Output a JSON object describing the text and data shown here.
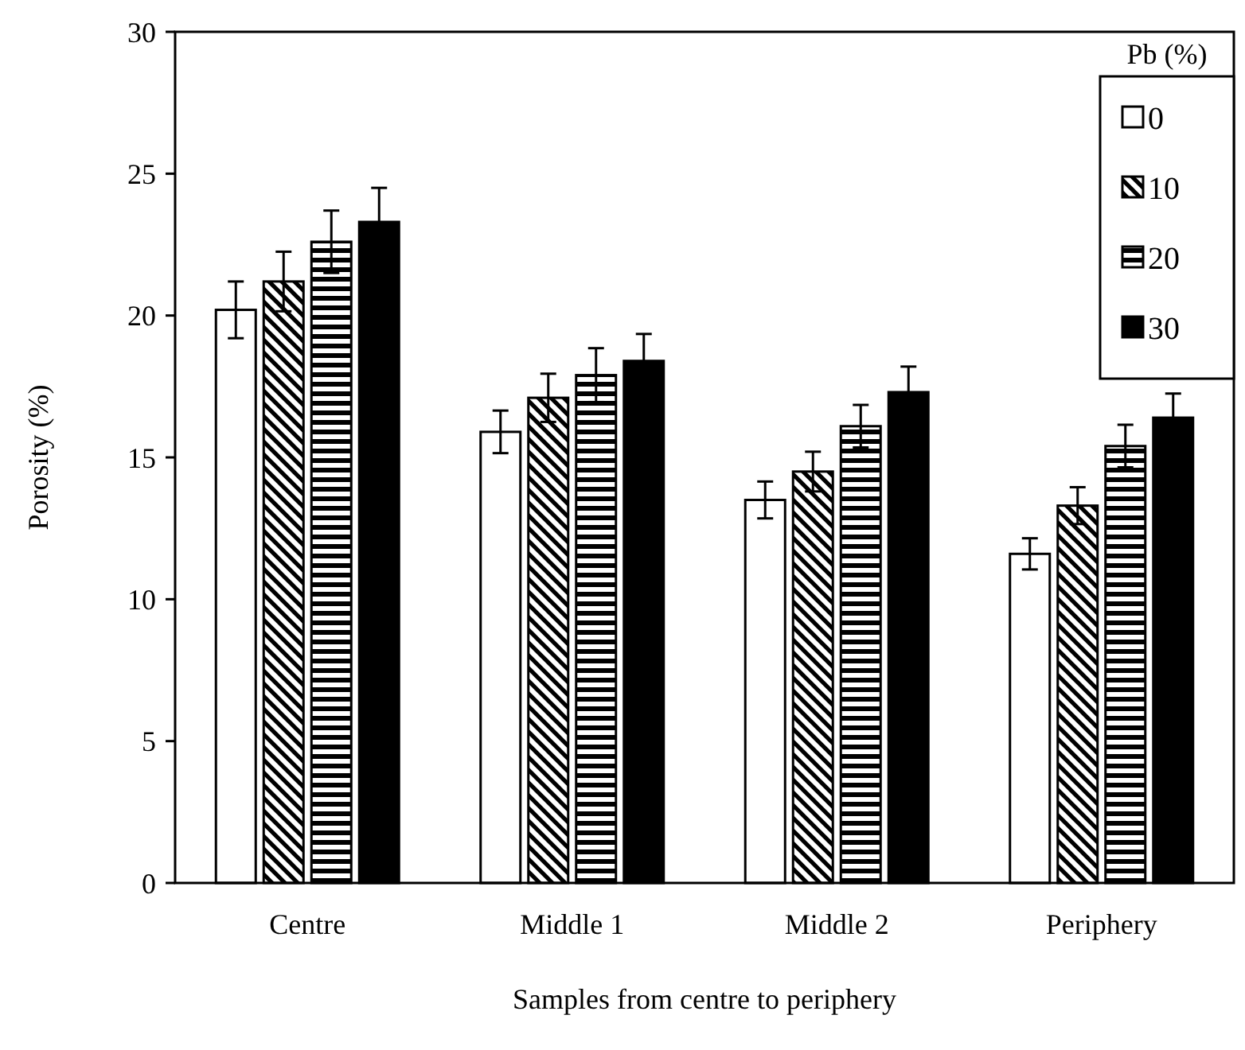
{
  "chart_data": {
    "type": "bar",
    "xlabel": "Samples from centre to periphery",
    "ylabel": "Porosity (%)",
    "legend_title": "Pb (%)",
    "legend": "top right",
    "grid": false,
    "categories": [
      "Centre",
      "Middle 1",
      "Middle 2",
      "Periphery"
    ],
    "ylim": [
      0,
      30
    ],
    "yticks": [
      0,
      5,
      10,
      15,
      20,
      25,
      30
    ],
    "series": [
      {
        "name": "0",
        "color": "#ffffff",
        "values": [
          20.2,
          15.9,
          13.5,
          11.6
        ],
        "errors": [
          1.0,
          0.75,
          0.65,
          0.55
        ]
      },
      {
        "name": "10",
        "color": "#000000",
        "values": [
          21.2,
          17.1,
          14.5,
          13.3
        ],
        "errors": [
          1.05,
          0.85,
          0.7,
          0.65
        ]
      },
      {
        "name": "20",
        "color": "#000000",
        "values": [
          22.6,
          17.9,
          16.1,
          15.4
        ],
        "errors": [
          1.1,
          0.95,
          0.75,
          0.75
        ]
      },
      {
        "name": "30",
        "color": "#000000",
        "values": [
          23.3,
          18.4,
          17.3,
          16.4
        ],
        "errors": [
          1.2,
          0.95,
          0.9,
          0.85
        ]
      }
    ]
  }
}
